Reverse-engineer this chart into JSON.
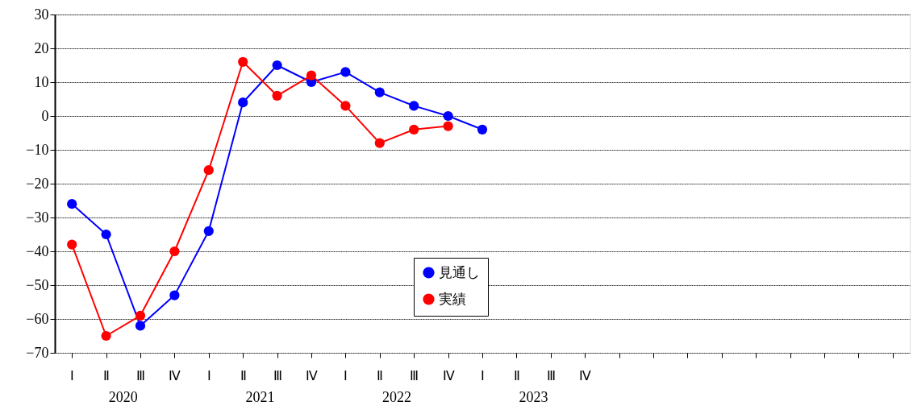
{
  "chart_data": {
    "type": "line",
    "categories": [
      "Ⅰ",
      "Ⅱ",
      "Ⅲ",
      "Ⅳ",
      "Ⅰ",
      "Ⅱ",
      "Ⅲ",
      "Ⅳ",
      "Ⅰ",
      "Ⅱ",
      "Ⅲ",
      "Ⅳ",
      "Ⅰ",
      "Ⅱ",
      "Ⅲ",
      "Ⅳ",
      null,
      null,
      null,
      null,
      null,
      null,
      null,
      null,
      null
    ],
    "ylim": [
      -70,
      30
    ],
    "yticks": [
      -70,
      -60,
      -50,
      -40,
      -30,
      -20,
      -10,
      0,
      10,
      20,
      30
    ],
    "series": [
      {
        "name": "見通し",
        "color": "#0000ff",
        "values": [
          -26,
          -35,
          -62,
          -53,
          -34,
          4,
          15,
          10,
          13,
          7,
          3,
          0,
          -4,
          null,
          null,
          null,
          null,
          null,
          null,
          null,
          null,
          null,
          null,
          null,
          null
        ]
      },
      {
        "name": "実績",
        "color": "#ff0000",
        "values": [
          -38,
          -65,
          -59,
          -40,
          -16,
          16,
          6,
          12,
          3,
          -8,
          -4,
          -3,
          null,
          null,
          null,
          null,
          null,
          null,
          null,
          null,
          null,
          null,
          null,
          null,
          null
        ]
      }
    ],
    "annotations": [
      "2020",
      "2021",
      "2022",
      "2023"
    ],
    "grid": "y",
    "legend": "bottom",
    "marker": "circle",
    "line_style": "solid"
  }
}
